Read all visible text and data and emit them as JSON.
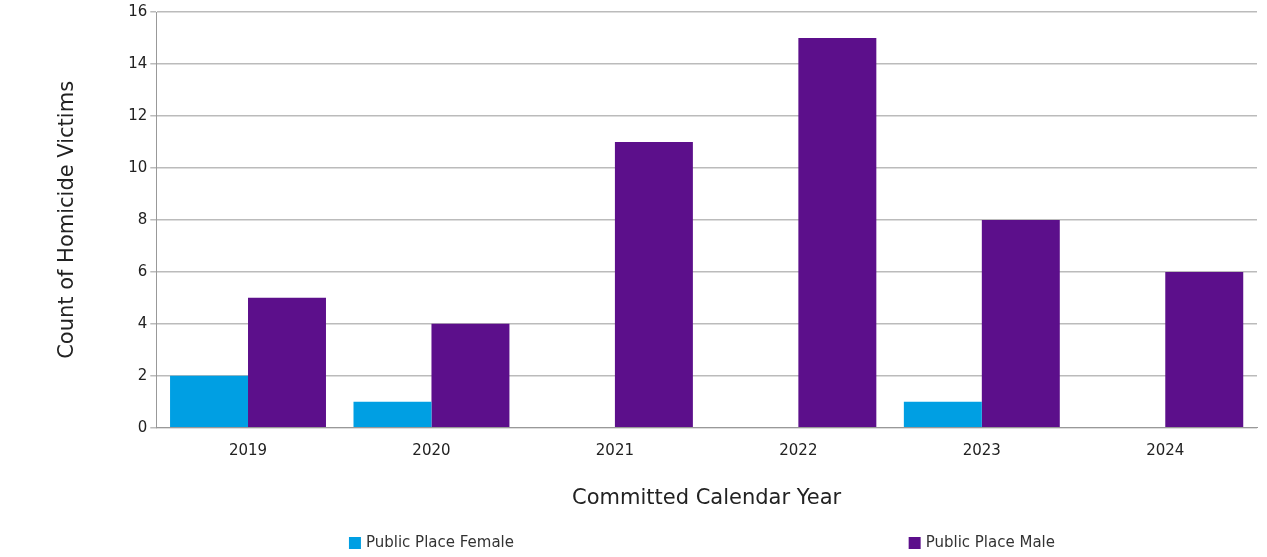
{
  "chart_data": {
    "type": "bar",
    "xlabel": "Committed Calendar Year",
    "ylabel": "Count of Homicide Victims",
    "categories": [
      "2019",
      "2020",
      "2021",
      "2022",
      "2023",
      "2024"
    ],
    "series": [
      {
        "name": "Public Place Female",
        "color": "#009fe3",
        "values": [
          2,
          1,
          0,
          0,
          1,
          0
        ]
      },
      {
        "name": "Public Place Male",
        "color": "#5c0f8b",
        "values": [
          5,
          4,
          11,
          15,
          8,
          6
        ]
      }
    ],
    "ylim": [
      0,
      16
    ],
    "yticks": [
      0,
      2,
      4,
      6,
      8,
      10,
      12,
      14,
      16
    ],
    "grid": "y",
    "legend": "bottom"
  }
}
